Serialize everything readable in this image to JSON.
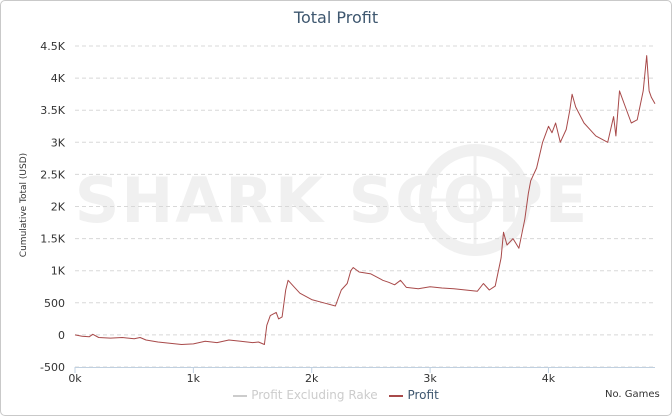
{
  "chart_data": {
    "type": "line",
    "title": "Total Profit",
    "ylabel": "Cumulative Total (USD)",
    "xlabel": "No. Games",
    "watermark": "SHARK SCOPE",
    "xlim": [
      0,
      4900
    ],
    "ylim": [
      -500,
      4500
    ],
    "xticks": [
      0,
      1000,
      2000,
      3000,
      4000
    ],
    "xtick_labels": [
      "0k",
      "1k",
      "2k",
      "3k",
      "4k"
    ],
    "yticks": [
      -500,
      0,
      500,
      1000,
      1500,
      2000,
      2500,
      3000,
      3500,
      4000,
      4500
    ],
    "ytick_labels": [
      "-500",
      "0",
      "500",
      "1K",
      "1.5K",
      "2K",
      "2.5K",
      "3K",
      "3.5K",
      "4K",
      "4.5K"
    ],
    "grid": true,
    "legend_position": "bottom-center",
    "series": [
      {
        "name": "Profit Excluding Rake",
        "visible": false,
        "color": "#cccccc",
        "x": [],
        "y": []
      },
      {
        "name": "Profit",
        "visible": true,
        "color": "#a84a4a",
        "x": [
          0,
          60,
          120,
          150,
          200,
          300,
          400,
          500,
          550,
          600,
          700,
          800,
          900,
          1000,
          1100,
          1200,
          1300,
          1400,
          1500,
          1550,
          1600,
          1620,
          1650,
          1700,
          1720,
          1750,
          1780,
          1800,
          1850,
          1900,
          2000,
          2100,
          2200,
          2250,
          2300,
          2330,
          2350,
          2400,
          2500,
          2600,
          2650,
          2700,
          2750,
          2800,
          2900,
          3000,
          3100,
          3200,
          3300,
          3400,
          3450,
          3500,
          3550,
          3600,
          3620,
          3650,
          3700,
          3750,
          3800,
          3830,
          3850,
          3900,
          3950,
          4000,
          4030,
          4060,
          4100,
          4150,
          4180,
          4200,
          4230,
          4300,
          4400,
          4500,
          4550,
          4570,
          4600,
          4650,
          4700,
          4750,
          4800,
          4830,
          4850,
          4870,
          4900
        ],
        "y": [
          0,
          -20,
          -30,
          10,
          -40,
          -50,
          -40,
          -60,
          -40,
          -80,
          -110,
          -130,
          -150,
          -140,
          -100,
          -120,
          -80,
          -100,
          -120,
          -110,
          -150,
          150,
          300,
          350,
          250,
          280,
          700,
          850,
          750,
          650,
          550,
          500,
          450,
          700,
          800,
          1000,
          1050,
          980,
          950,
          850,
          820,
          780,
          850,
          740,
          720,
          750,
          730,
          720,
          700,
          680,
          800,
          700,
          760,
          1200,
          1600,
          1400,
          1500,
          1350,
          1800,
          2200,
          2400,
          2600,
          3000,
          3250,
          3150,
          3300,
          3000,
          3200,
          3500,
          3750,
          3550,
          3300,
          3100,
          3000,
          3400,
          3100,
          3800,
          3550,
          3300,
          3350,
          3800,
          4350,
          3800,
          3700,
          3600
        ]
      }
    ]
  }
}
